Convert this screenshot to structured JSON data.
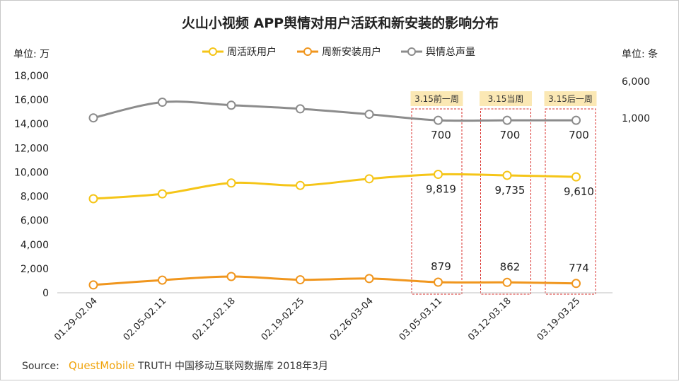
{
  "chart_data": {
    "type": "line",
    "title": "火山小视频 APP舆情对用户活跃和新安装的影响分布",
    "y_left_unit": "单位: 万",
    "y_right_unit": "单位: 条",
    "ylim_left": [
      0,
      18000
    ],
    "y_left_ticks": [
      "0",
      "2,000",
      "4,000",
      "6,000",
      "8,000",
      "10,000",
      "12,000",
      "14,000",
      "16,000",
      "18,000"
    ],
    "y_right_ticks": [
      "6,000",
      "1,000"
    ],
    "categories": [
      "01.29-02.04",
      "02.05-02.11",
      "02.12-02.18",
      "02.19-02.25",
      "02.26-03-04",
      "03.05-03.11",
      "03.12-03.18",
      "03.19-03.25"
    ],
    "series": [
      {
        "name": "周活跃用户",
        "color": "#f5c518",
        "values": [
          7800,
          8200,
          9100,
          8900,
          9450,
          9819,
          9735,
          9610
        ],
        "labels": [
          "",
          "",
          "",
          "",
          "",
          "9,819",
          "9,735",
          "9,610"
        ]
      },
      {
        "name": "周新安装用户",
        "color": "#f0961e",
        "values": [
          650,
          1050,
          1350,
          1080,
          1180,
          879,
          862,
          774
        ],
        "labels": [
          "",
          "",
          "",
          "",
          "",
          "879",
          "862",
          "774"
        ]
      },
      {
        "name": "舆情总声量",
        "color": "#8c8c8c",
        "values": [
          14500,
          15800,
          15550,
          15250,
          14800,
          14300,
          14300,
          14300
        ],
        "labels": [
          "",
          "",
          "",
          "",
          "",
          "700",
          "700",
          "700"
        ]
      }
    ],
    "highlights": [
      {
        "label": "3.15前一周",
        "category_index": 5
      },
      {
        "label": "3.15当周",
        "category_index": 6
      },
      {
        "label": "3.15后一周",
        "category_index": 7
      }
    ],
    "grid": false,
    "legend": "top-center"
  },
  "source": {
    "prefix": "Source:",
    "brand": "QuestMobile",
    "text": "TRUTH 中国移动互联网数据库 2018年3月"
  }
}
